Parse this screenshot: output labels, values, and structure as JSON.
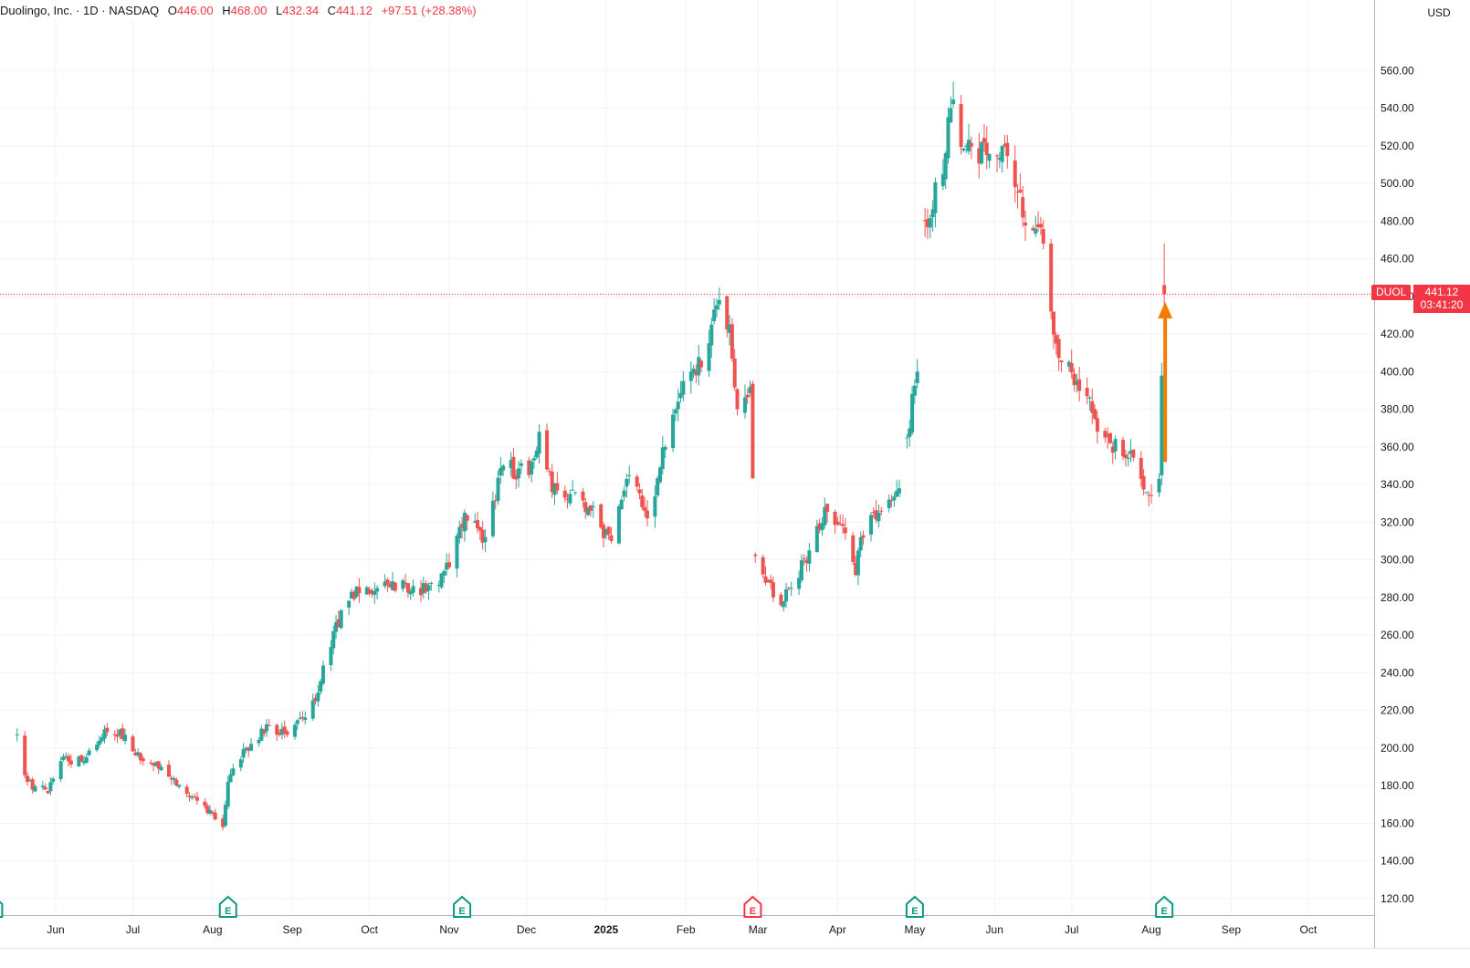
{
  "header": {
    "name": "Duolingo, Inc. · 1D · NASDAQ",
    "o_label": "O",
    "o_value": "446.00",
    "h_label": "H",
    "h_value": "468.00",
    "l_label": "L",
    "l_value": "432.34",
    "c_label": "C",
    "c_value": "441.12",
    "change": "+97.51 (+28.38%)"
  },
  "currency": "USD",
  "symbol": "DUOL",
  "last_price": "441.12",
  "countdown": "03:41:20",
  "colors": {
    "up": "#26a69a",
    "down": "#ef5350",
    "grid": "#f0f3fa",
    "axis_text": "#131722",
    "price_line": "#f23645",
    "arrow": "#f57c00",
    "earnings_past": "#089981",
    "earnings_miss": "#f23645"
  },
  "chart_data": {
    "type": "candlestick",
    "interval": "1D",
    "y_axis": {
      "ticks": [
        120,
        140,
        160,
        180,
        200,
        220,
        240,
        260,
        280,
        300,
        320,
        340,
        360,
        380,
        400,
        420,
        440,
        460,
        480,
        500,
        520,
        540,
        560
      ],
      "tick_labels": [
        "120.00",
        "140.00",
        "160.00",
        "180.00",
        "200.00",
        "220.00",
        "240.00",
        "260.00",
        "280.00",
        "300.00",
        "320.00",
        "340.00",
        "360.00",
        "380.00",
        "400.00",
        "420.00",
        "440.00",
        "460.00",
        "480.00",
        "500.00",
        "520.00",
        "540.00",
        "560.00"
      ],
      "range": [
        110,
        570
      ],
      "position": "right"
    },
    "x_axis": {
      "labels": [
        "Jun",
        "Jul",
        "Aug",
        "Sep",
        "Oct",
        "Nov",
        "Dec",
        "2025",
        "Feb",
        "Mar",
        "Apr",
        "May",
        "Jun",
        "Jul",
        "Aug",
        "Sep",
        "Oct"
      ],
      "label_dates": [
        "2024-06-01",
        "2024-07-01",
        "2024-08-01",
        "2024-09-01",
        "2024-10-01",
        "2024-11-01",
        "2024-12-01",
        "2025-01-01",
        "2025-02-01",
        "2025-03-01",
        "2025-04-01",
        "2025-05-01",
        "2025-06-01",
        "2025-07-01",
        "2025-08-01",
        "2025-09-01",
        "2025-10-01"
      ],
      "bold_labels": [
        "2025"
      ]
    },
    "grid": true,
    "anchors": [
      {
        "date": "2024-05-17",
        "price": 206
      },
      {
        "date": "2024-05-21",
        "price": 182
      },
      {
        "date": "2024-05-29",
        "price": 176
      },
      {
        "date": "2024-06-03",
        "price": 193
      },
      {
        "date": "2024-06-12",
        "price": 193
      },
      {
        "date": "2024-06-20",
        "price": 210
      },
      {
        "date": "2024-06-28",
        "price": 207
      },
      {
        "date": "2024-07-02",
        "price": 196
      },
      {
        "date": "2024-07-12",
        "price": 190
      },
      {
        "date": "2024-07-24",
        "price": 174
      },
      {
        "date": "2024-07-31",
        "price": 167
      },
      {
        "date": "2024-08-05",
        "price": 158
      },
      {
        "date": "2024-08-07",
        "price": 182
      },
      {
        "date": "2024-08-14",
        "price": 200
      },
      {
        "date": "2024-08-23",
        "price": 212
      },
      {
        "date": "2024-08-30",
        "price": 207
      },
      {
        "date": "2024-09-10",
        "price": 225
      },
      {
        "date": "2024-09-17",
        "price": 262
      },
      {
        "date": "2024-09-24",
        "price": 283
      },
      {
        "date": "2024-10-04",
        "price": 285
      },
      {
        "date": "2024-10-15",
        "price": 287
      },
      {
        "date": "2024-10-23",
        "price": 283
      },
      {
        "date": "2024-11-01",
        "price": 296
      },
      {
        "date": "2024-11-07",
        "price": 325
      },
      {
        "date": "2024-11-15",
        "price": 312
      },
      {
        "date": "2024-11-22",
        "price": 350
      },
      {
        "date": "2024-12-02",
        "price": 345
      },
      {
        "date": "2024-12-06",
        "price": 368
      },
      {
        "date": "2024-12-11",
        "price": 336
      },
      {
        "date": "2024-12-18",
        "price": 335
      },
      {
        "date": "2024-12-26",
        "price": 326
      },
      {
        "date": "2025-01-03",
        "price": 310
      },
      {
        "date": "2025-01-10",
        "price": 345
      },
      {
        "date": "2025-01-17",
        "price": 322
      },
      {
        "date": "2025-01-24",
        "price": 360
      },
      {
        "date": "2025-01-31",
        "price": 395
      },
      {
        "date": "2025-02-05",
        "price": 398
      },
      {
        "date": "2025-02-11",
        "price": 425
      },
      {
        "date": "2025-02-14",
        "price": 438
      },
      {
        "date": "2025-02-18",
        "price": 425
      },
      {
        "date": "2025-02-21",
        "price": 380
      },
      {
        "date": "2025-02-26",
        "price": 392
      },
      {
        "date": "2025-02-28",
        "price": 302
      },
      {
        "date": "2025-03-10",
        "price": 276
      },
      {
        "date": "2025-03-14",
        "price": 285
      },
      {
        "date": "2025-03-21",
        "price": 305
      },
      {
        "date": "2025-03-27",
        "price": 328
      },
      {
        "date": "2025-04-03",
        "price": 318
      },
      {
        "date": "2025-04-08",
        "price": 292
      },
      {
        "date": "2025-04-10",
        "price": 312
      },
      {
        "date": "2025-04-17",
        "price": 325
      },
      {
        "date": "2025-04-25",
        "price": 338
      },
      {
        "date": "2025-04-28",
        "price": 365
      },
      {
        "date": "2025-05-02",
        "price": 400
      },
      {
        "date": "2025-05-05",
        "price": 480
      },
      {
        "date": "2025-05-12",
        "price": 505
      },
      {
        "date": "2025-05-15",
        "price": 540
      },
      {
        "date": "2025-05-21",
        "price": 520
      },
      {
        "date": "2025-05-29",
        "price": 515
      },
      {
        "date": "2025-06-05",
        "price": 520
      },
      {
        "date": "2025-06-09",
        "price": 498
      },
      {
        "date": "2025-06-16",
        "price": 475
      },
      {
        "date": "2025-06-20",
        "price": 468
      },
      {
        "date": "2025-06-23",
        "price": 432
      },
      {
        "date": "2025-06-27",
        "price": 405
      },
      {
        "date": "2025-07-03",
        "price": 395
      },
      {
        "date": "2025-07-10",
        "price": 375
      },
      {
        "date": "2025-07-16",
        "price": 362
      },
      {
        "date": "2025-07-24",
        "price": 358
      },
      {
        "date": "2025-07-30",
        "price": 336
      },
      {
        "date": "2025-08-04",
        "price": 343
      },
      {
        "date": "2025-08-06",
        "price": 441.12
      }
    ],
    "gaps": [
      {
        "after": "2025-02-26",
        "before": "2025-02-28"
      },
      {
        "after": "2025-04-25",
        "before": "2025-04-28"
      },
      {
        "after": "2025-05-02",
        "before": "2025-05-05"
      }
    ],
    "last_candle": {
      "date": "2025-08-06",
      "open": 446.0,
      "high": 468.0,
      "low": 432.34,
      "close": 441.12
    },
    "current_price_line": 441.12,
    "annotation_arrow": {
      "from": {
        "date": "2025-08-06",
        "price": 352
      },
      "to": {
        "date": "2025-08-06",
        "price": 437
      }
    },
    "earnings_markers": [
      {
        "date": "2024-05-08",
        "result": "beat",
        "label": "E"
      },
      {
        "date": "2024-08-07",
        "result": "beat",
        "label": "E"
      },
      {
        "date": "2024-11-06",
        "result": "beat",
        "label": "E"
      },
      {
        "date": "2025-02-27",
        "result": "miss",
        "label": "E"
      },
      {
        "date": "2025-05-01",
        "result": "beat",
        "label": "E"
      },
      {
        "date": "2025-08-06",
        "result": "beat",
        "label": "E"
      }
    ]
  }
}
